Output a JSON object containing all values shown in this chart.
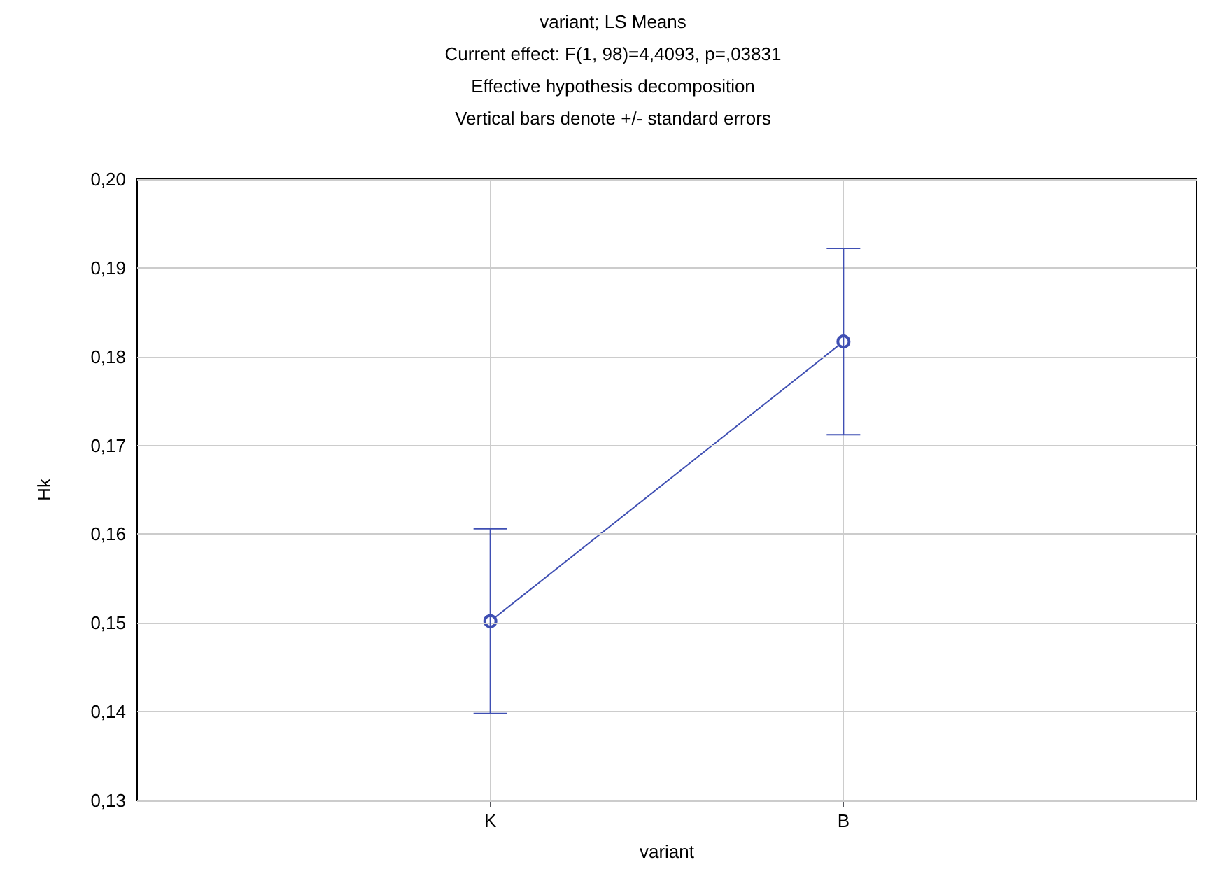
{
  "chart_data": {
    "type": "line",
    "title": "variant; LS Means",
    "subtitle": "Current effect: F(1, 98)=4,4093, p=,03831",
    "annotations": [
      "Effective hypothesis decomposition",
      "Vertical bars denote +/- standard errors"
    ],
    "xlabel": "variant",
    "ylabel": "Hk",
    "categories": [
      "K",
      "B"
    ],
    "series": [
      {
        "color": "#3f4fb3",
        "values": [
          0.1502,
          0.1817
        ],
        "errors": [
          0.0104,
          0.0105
        ]
      }
    ],
    "ylim": [
      0.13,
      0.2
    ],
    "yticks": [
      {
        "value": 0.13,
        "label": "0,13"
      },
      {
        "value": 0.14,
        "label": "0,14"
      },
      {
        "value": 0.15,
        "label": "0,15"
      },
      {
        "value": 0.16,
        "label": "0,16"
      },
      {
        "value": 0.17,
        "label": "0,17"
      },
      {
        "value": 0.18,
        "label": "0,18"
      },
      {
        "value": 0.19,
        "label": "0,19"
      },
      {
        "value": 0.2,
        "label": "0,20"
      }
    ],
    "grid": true,
    "marker": "circle",
    "line_style": "solid"
  }
}
